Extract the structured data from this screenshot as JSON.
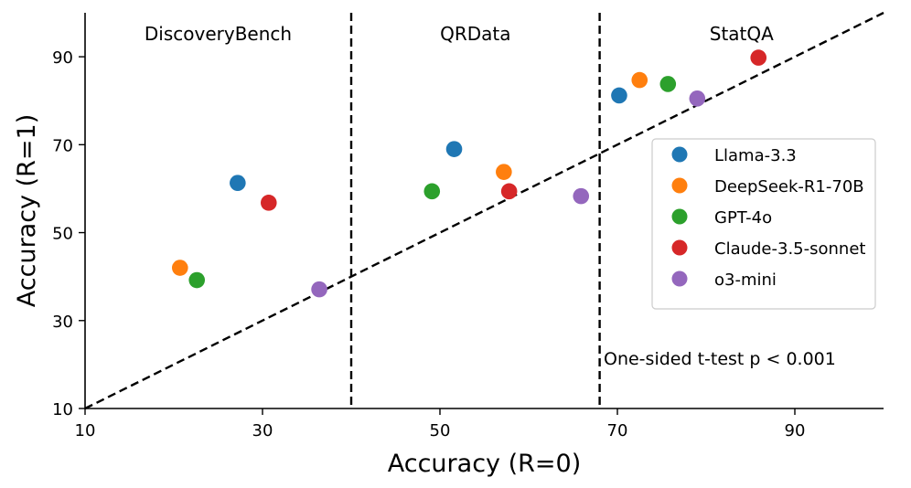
{
  "chart_data": {
    "type": "scatter",
    "xlabel": "Accuracy (R=0)",
    "ylabel": "Accuracy (R=1)",
    "xlim": [
      10,
      100
    ],
    "ylim": [
      10,
      100
    ],
    "xticks": [
      10,
      30,
      50,
      70,
      90
    ],
    "yticks": [
      10,
      30,
      50,
      70,
      90
    ],
    "grid": false,
    "reference_line": {
      "style": "dashed",
      "from": [
        10,
        10
      ],
      "to": [
        100,
        100
      ]
    },
    "dividers": [
      40,
      68
    ],
    "regions": [
      {
        "label": "DiscoveryBench",
        "x_center": 25
      },
      {
        "label": "QRData",
        "x_center": 54
      },
      {
        "label": "StatQA",
        "x_center": 84
      }
    ],
    "annotation": "One-sided t-test  p < 0.001",
    "legend_position": "center-right",
    "series": [
      {
        "name": "Llama-3.3",
        "color": "#1f77b4",
        "points": [
          {
            "x": 27.2,
            "y": 61.3
          },
          {
            "x": 51.6,
            "y": 69.0
          },
          {
            "x": 70.2,
            "y": 81.2
          }
        ]
      },
      {
        "name": "DeepSeek-R1-70B",
        "color": "#ff7f0e",
        "points": [
          {
            "x": 20.7,
            "y": 42.0
          },
          {
            "x": 57.2,
            "y": 63.8
          },
          {
            "x": 72.5,
            "y": 84.7
          }
        ]
      },
      {
        "name": "GPT-4o",
        "color": "#2ca02c",
        "points": [
          {
            "x": 22.6,
            "y": 39.2
          },
          {
            "x": 49.1,
            "y": 59.4
          },
          {
            "x": 75.7,
            "y": 83.8
          }
        ]
      },
      {
        "name": "Claude-3.5-sonnet",
        "color": "#d62728",
        "points": [
          {
            "x": 30.7,
            "y": 56.8
          },
          {
            "x": 57.8,
            "y": 59.4
          },
          {
            "x": 85.9,
            "y": 89.8
          }
        ]
      },
      {
        "name": "o3-mini",
        "color": "#9467bd",
        "points": [
          {
            "x": 36.4,
            "y": 37.1
          },
          {
            "x": 65.9,
            "y": 58.3
          },
          {
            "x": 79.0,
            "y": 80.5
          }
        ]
      }
    ]
  }
}
